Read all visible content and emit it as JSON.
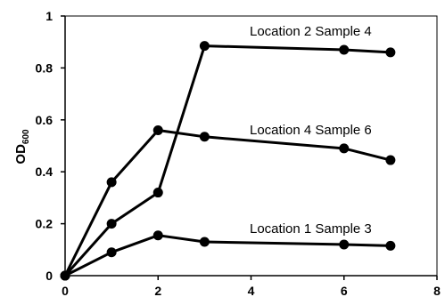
{
  "chart_data": {
    "type": "line",
    "x": [
      0,
      1,
      2,
      3,
      6,
      7
    ],
    "series": [
      {
        "name": "Location 2 Sample 4",
        "values": [
          0,
          0.2,
          0.32,
          0.885,
          0.87,
          0.86
        ],
        "color": "#000000"
      },
      {
        "name": "Location 4 Sample 6",
        "values": [
          0,
          0.36,
          0.56,
          0.535,
          0.49,
          0.445
        ],
        "color": "#000000"
      },
      {
        "name": "Location 1 Sample 3",
        "values": [
          0,
          0.09,
          0.155,
          0.13,
          0.12,
          0.115
        ],
        "color": "#000000"
      }
    ],
    "ylabel": "OD",
    "ylabel_subscript": "600",
    "xlim": [
      0,
      8
    ],
    "ylim": [
      0,
      1
    ],
    "x_ticks": [
      "0",
      "2",
      "4",
      "6",
      "8"
    ],
    "y_ticks": [
      "0",
      "0.2",
      "0.4",
      "0.6",
      "0.8",
      "1"
    ],
    "grid": false,
    "legend": "inline",
    "marker": "filled-circle"
  }
}
